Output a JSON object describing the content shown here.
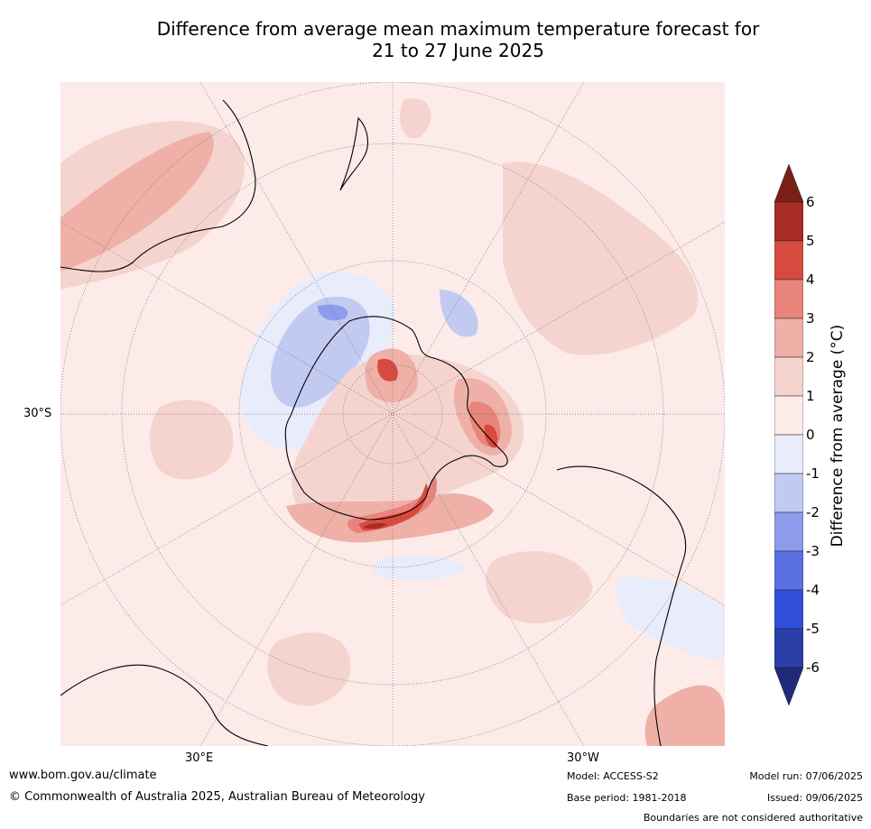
{
  "title": {
    "line1": "Difference from average mean maximum temperature forecast for",
    "line2": "21 to 27 June 2025"
  },
  "map": {
    "projection": "south-polar-stereographic",
    "latitude_label": "30°S",
    "longitude_labels": [
      "30°E",
      "30°W"
    ],
    "land_outline_color": "#000000",
    "ocean_fill_color": "#fcebe9"
  },
  "colorbar": {
    "title": "Difference from average (°C)",
    "ticks": [
      "6",
      "5",
      "4",
      "3",
      "2",
      "1",
      "0",
      "-1",
      "-2",
      "-3",
      "-4",
      "-5",
      "-6"
    ],
    "colors": {
      "above_6": "#7a1f18",
      "5_to_6": "#a82b25",
      "4_to_5": "#d84a3f",
      "3_to_4": "#e8847b",
      "2_to_3": "#efb0a8",
      "1_to_2": "#f5d4d0",
      "0_to_1": "#fcebe9",
      "-1_to_0": "#e8ecfb",
      "-2_to_-1": "#c2caf2",
      "-3_to_-2": "#8d9ced",
      "-4_to_-3": "#5b71e3",
      "-5_to_-4": "#304fd9",
      "-6_to_-5": "#2a3fa8",
      "below_-6": "#1f2a7a"
    }
  },
  "footer": {
    "website": "www.bom.gov.au/climate",
    "copyright": "© Commonwealth of Australia 2025, Australian Bureau of Meteorology",
    "model": "Model: ACCESS-S2",
    "base_period": "Base period: 1981-2018",
    "model_run": "Model run: 07/06/2025",
    "issued": "Issued: 09/06/2025",
    "disclaimer": "Boundaries are not considered authoritative"
  }
}
